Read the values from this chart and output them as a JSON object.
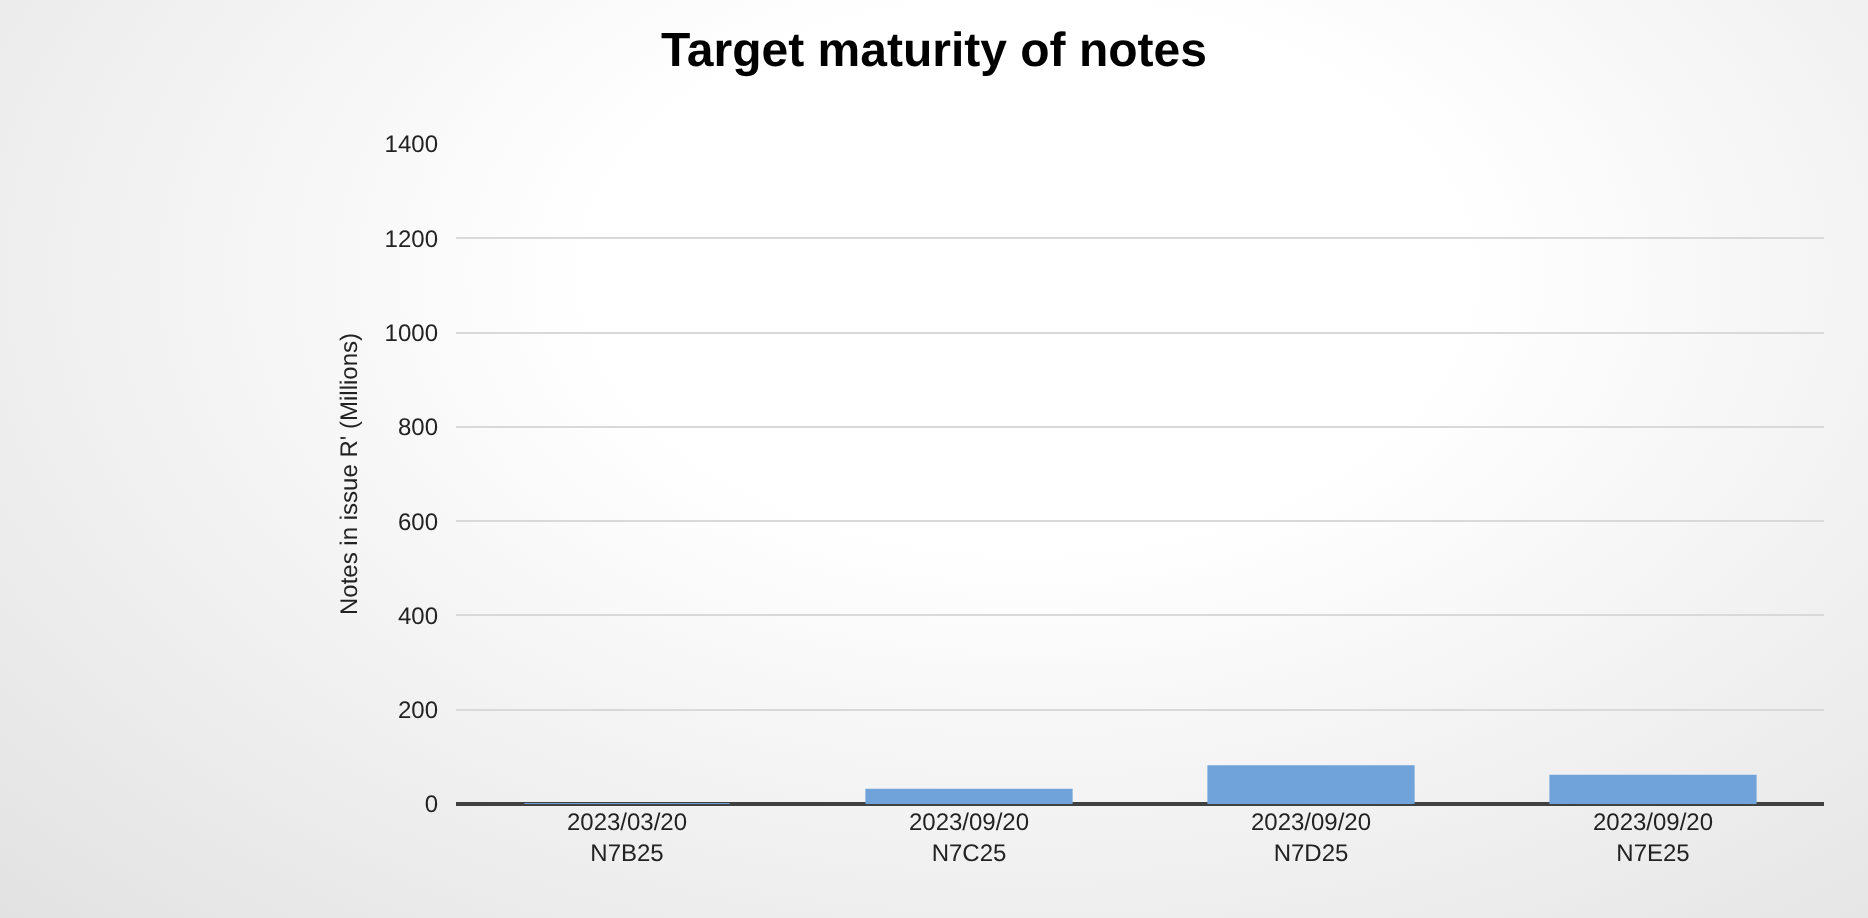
{
  "chart_data": {
    "type": "bar",
    "title": "Target maturity of notes",
    "ylabel": "Notes in issue R' (Millions)",
    "categories": [
      "2023/03/20\nN7B25",
      "2023/09/20\nN7C25",
      "2023/09/20\nN7D25",
      "2023/09/20\nN7E25"
    ],
    "values": [
      0,
      30,
      80,
      60
    ],
    "color": "#6fa3d9",
    "ylim": [
      0,
      1400
    ],
    "yticks": [
      0,
      200,
      400,
      600,
      800,
      1000,
      1200,
      1400
    ],
    "grid": "y"
  }
}
